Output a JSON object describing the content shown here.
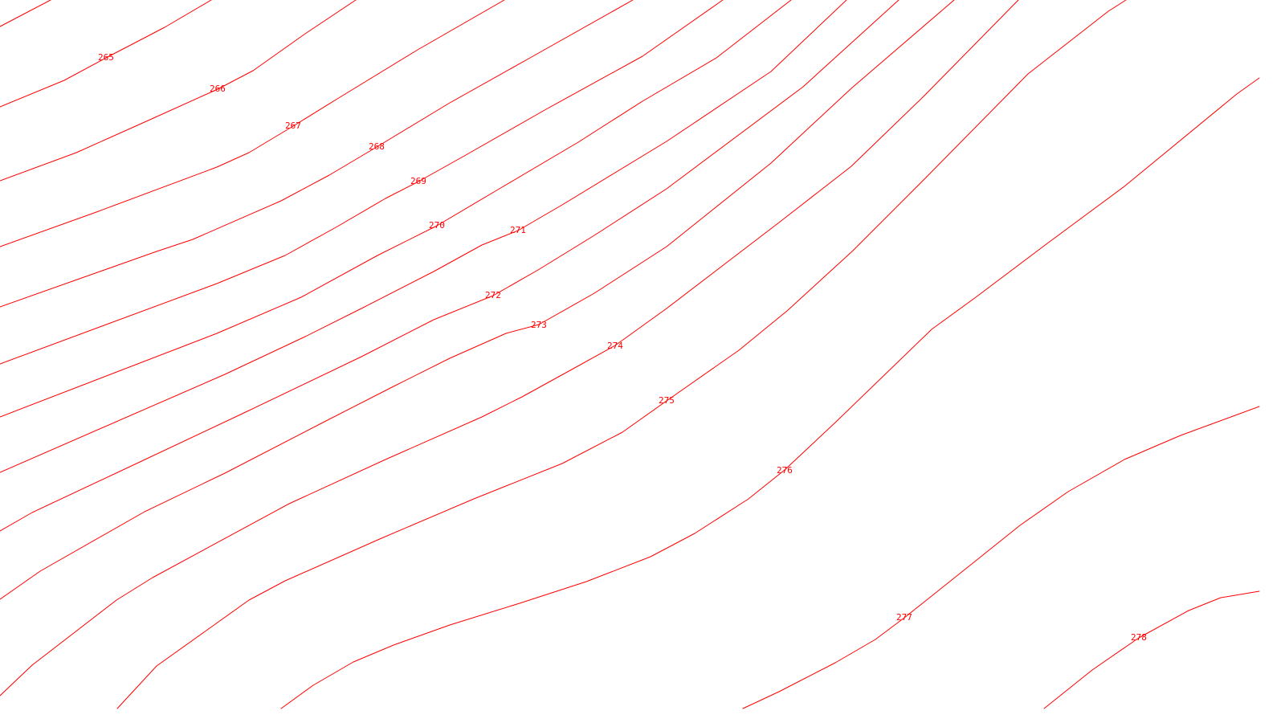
{
  "map": {
    "line_color": "#ff0000",
    "background_color": "#ffffff",
    "contour_labels": [
      "265",
      "266",
      "267",
      "268",
      "269",
      "270",
      "271",
      "272",
      "273",
      "274",
      "275",
      "276",
      "277",
      "278"
    ]
  }
}
